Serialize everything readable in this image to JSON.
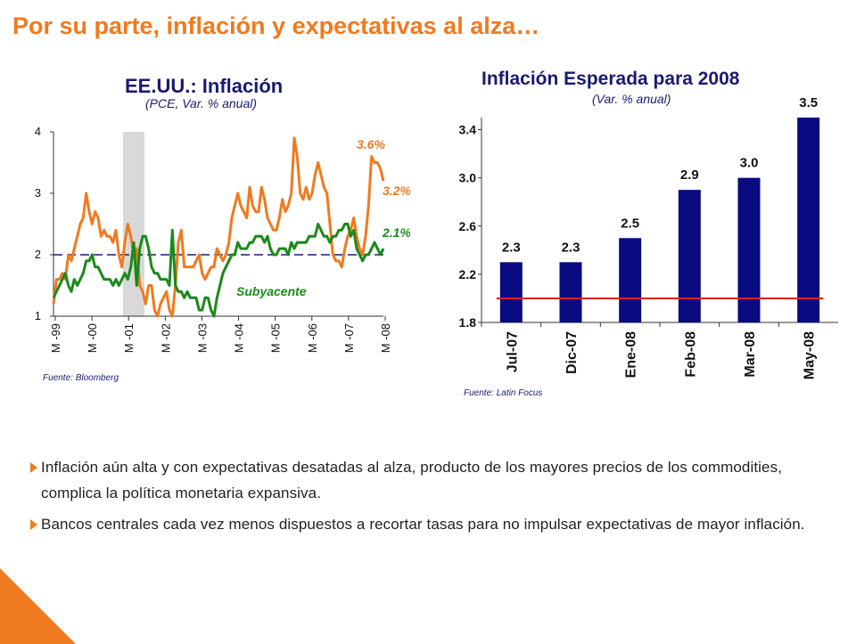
{
  "slide": {
    "title": "Por su parte, inflación y expectativas al alza…",
    "accent_color": "#f07a1e",
    "bullets": [
      "Inflación aún alta y con expectativas desatadas al alza, producto de los mayores precios de los commodities, complica la política monetaria expansiva.",
      "Bancos centrales cada vez menos dispuestos a recortar tasas para no impulsar expectativas de mayor inflación."
    ]
  },
  "chart_data": [
    {
      "type": "line",
      "title": "EE.UU.: Inflación",
      "subtitle": "(PCE, Var. % anual)",
      "source": "Fuente: Bloomberg",
      "ylim": [
        1,
        4
      ],
      "yticks": [
        "1",
        "2",
        "3",
        "4"
      ],
      "x_ticks": [
        "M -99",
        "M -00",
        "M -01",
        "M -02",
        "M -03",
        "M -04",
        "M -05",
        "M -06",
        "M -07",
        "M -08"
      ],
      "reference_line": 2,
      "shaded_period": [
        "M -01",
        "Nov-01"
      ],
      "series_colors": {
        "headline": "#f07a1e",
        "core": "#1a8a1a"
      },
      "series": [
        {
          "name": "",
          "color": "#f07a1e",
          "values": [
            1.2,
            1.6,
            1.6,
            1.7,
            1.6,
            2.0,
            1.9,
            2.1,
            2.3,
            2.5,
            2.6,
            3.0,
            2.7,
            2.5,
            2.7,
            2.6,
            2.3,
            2.4,
            2.3,
            2.3,
            2.2,
            2.4,
            2.0,
            1.8,
            2.2,
            2.5,
            2.3,
            2.0,
            2.1,
            1.5,
            1.4,
            1.2,
            1.5,
            1.5,
            1.1,
            1.0,
            1.2,
            1.3,
            1.4,
            1.1,
            1.0,
            1.5,
            2.2,
            2.4,
            1.8,
            1.8,
            1.8,
            1.8,
            1.9,
            2.0,
            1.7,
            1.6,
            1.7,
            1.8,
            1.8,
            2.1,
            2.0,
            1.9,
            2.0,
            2.2,
            2.6,
            2.8,
            3.0,
            2.8,
            2.7,
            2.6,
            3.1,
            2.8,
            2.7,
            2.7,
            3.1,
            2.9,
            2.6,
            2.5,
            2.4,
            2.4,
            2.6,
            2.9,
            2.7,
            2.8,
            3.0,
            3.9,
            3.6,
            3.0,
            2.9,
            3.1,
            2.9,
            3.0,
            3.3,
            3.5,
            3.3,
            3.1,
            3.0,
            2.5,
            2.0,
            1.9,
            1.9,
            1.8,
            2.1,
            2.3,
            2.4,
            2.6,
            2.3,
            2.1,
            2.0,
            2.3,
            2.8,
            3.6,
            3.5,
            3.5,
            3.4,
            3.2
          ]
        },
        {
          "name": "Subyacente",
          "color": "#1a8a1a",
          "values": [
            1.3,
            1.4,
            1.5,
            1.6,
            1.7,
            1.5,
            1.4,
            1.6,
            1.5,
            1.6,
            1.7,
            1.9,
            1.9,
            2.0,
            1.8,
            1.8,
            1.7,
            1.6,
            1.6,
            1.6,
            1.5,
            1.6,
            1.5,
            1.6,
            1.7,
            1.6,
            1.8,
            2.2,
            1.5,
            2.1,
            2.3,
            2.3,
            2.1,
            1.8,
            1.7,
            1.7,
            1.6,
            1.6,
            1.6,
            1.5,
            2.4,
            1.5,
            1.4,
            1.4,
            1.3,
            1.4,
            1.3,
            1.3,
            1.3,
            1.1,
            1.1,
            1.3,
            1.3,
            1.1,
            1.0,
            1.3,
            1.5,
            1.7,
            1.8,
            1.9,
            2.0,
            2.0,
            2.2,
            2.1,
            2.1,
            2.1,
            2.2,
            2.2,
            2.3,
            2.3,
            2.3,
            2.2,
            2.3,
            2.1,
            2.0,
            2.0,
            2.1,
            2.1,
            2.1,
            2.0,
            2.2,
            2.1,
            2.2,
            2.2,
            2.2,
            2.2,
            2.3,
            2.3,
            2.3,
            2.5,
            2.4,
            2.3,
            2.3,
            2.2,
            2.3,
            2.3,
            2.4,
            2.4,
            2.5,
            2.5,
            2.3,
            2.4,
            2.1,
            2.0,
            1.9,
            2.0,
            2.0,
            2.1,
            2.2,
            2.1,
            2.0,
            2.1
          ]
        }
      ],
      "annotations": [
        {
          "text": "3.6%",
          "color": "#f07a1e"
        },
        {
          "text": "3.2%",
          "color": "#f07a1e"
        },
        {
          "text": "2.1%",
          "color": "#1a8a1a"
        },
        {
          "text": "Subyacente",
          "color": "#1a8a1a"
        }
      ]
    },
    {
      "type": "bar",
      "title": "Inflación Esperada para 2008",
      "subtitle": "(Var. % anual)",
      "source": "Fuente: Latin Focus",
      "categories": [
        "Jul-07",
        "Dic-07",
        "Ene-08",
        "Feb-08",
        "Mar-08",
        "May-08"
      ],
      "values": [
        2.3,
        2.3,
        2.5,
        2.9,
        3.0,
        3.5
      ],
      "value_labels": [
        "2.3",
        "2.3",
        "2.5",
        "2.9",
        "3.0",
        "3.5"
      ],
      "ylim": [
        1.8,
        3.5
      ],
      "yticks": [
        "1.8",
        "2.2",
        "2.6",
        "3.0",
        "3.4"
      ],
      "reference_line": 2.0,
      "bar_color": "#0a0a80",
      "reference_color": "#e02020"
    }
  ]
}
